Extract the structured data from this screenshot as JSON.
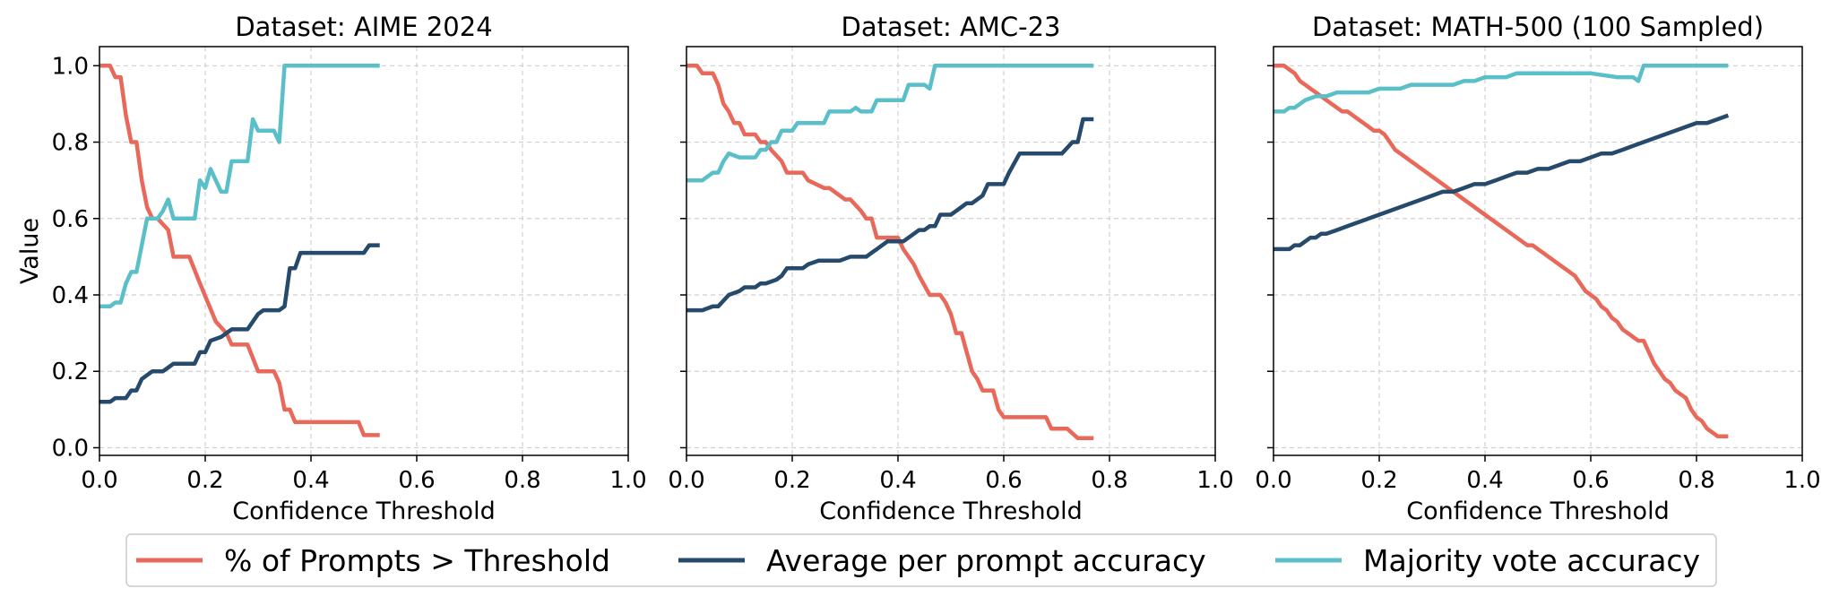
{
  "figure": {
    "legend": [
      {
        "name": "% of Prompts > Threshold",
        "color": "#e8685a"
      },
      {
        "name": "Average per prompt accuracy",
        "color": "#264a6b"
      },
      {
        "name": "Majority vote accuracy",
        "color": "#5bbfc9"
      }
    ],
    "legend_placement": "bottom-center"
  },
  "chart_data": [
    {
      "type": "line",
      "title": "Dataset: AIME 2024",
      "xlabel": "Confidence Threshold",
      "ylabel": "Value",
      "xlim": [
        0,
        1
      ],
      "ylim": [
        -0.02,
        1.05
      ],
      "xticks": [
        "0.0",
        "0.2",
        "0.4",
        "0.6",
        "0.8",
        "1.0"
      ],
      "yticks": [
        "0.0",
        "0.2",
        "0.4",
        "0.6",
        "0.8",
        "1.0"
      ],
      "grid": true,
      "series": [
        {
          "name": "% of Prompts > Threshold",
          "color": "#e8685a",
          "x": [
            0,
            0.02,
            0.03,
            0.04,
            0.05,
            0.06,
            0.065,
            0.07,
            0.08,
            0.09,
            0.1,
            0.11,
            0.13,
            0.14,
            0.17,
            0.19,
            0.22,
            0.24,
            0.25,
            0.28,
            0.3,
            0.33,
            0.34,
            0.35,
            0.36,
            0.37,
            0.49,
            0.5,
            0.53
          ],
          "y": [
            1.0,
            1.0,
            0.97,
            0.97,
            0.87,
            0.8,
            0.8,
            0.8,
            0.7,
            0.63,
            0.6,
            0.6,
            0.57,
            0.5,
            0.5,
            0.43,
            0.33,
            0.3,
            0.27,
            0.27,
            0.2,
            0.2,
            0.17,
            0.1,
            0.1,
            0.067,
            0.067,
            0.033,
            0.033
          ]
        },
        {
          "name": "Average per prompt accuracy",
          "color": "#264a6b",
          "x": [
            0,
            0.02,
            0.03,
            0.05,
            0.06,
            0.07,
            0.08,
            0.1,
            0.12,
            0.13,
            0.14,
            0.15,
            0.18,
            0.19,
            0.2,
            0.21,
            0.23,
            0.25,
            0.28,
            0.3,
            0.31,
            0.34,
            0.35,
            0.36,
            0.37,
            0.38,
            0.5,
            0.51,
            0.53
          ],
          "y": [
            0.12,
            0.12,
            0.13,
            0.13,
            0.15,
            0.15,
            0.18,
            0.2,
            0.2,
            0.21,
            0.22,
            0.22,
            0.22,
            0.25,
            0.25,
            0.28,
            0.29,
            0.31,
            0.31,
            0.35,
            0.36,
            0.36,
            0.37,
            0.47,
            0.47,
            0.51,
            0.51,
            0.53,
            0.53
          ]
        },
        {
          "name": "Majority vote accuracy",
          "color": "#5bbfc9",
          "x": [
            0,
            0.02,
            0.03,
            0.04,
            0.05,
            0.06,
            0.07,
            0.08,
            0.09,
            0.1,
            0.11,
            0.12,
            0.13,
            0.14,
            0.15,
            0.16,
            0.17,
            0.18,
            0.19,
            0.2,
            0.21,
            0.22,
            0.23,
            0.24,
            0.25,
            0.26,
            0.27,
            0.28,
            0.29,
            0.3,
            0.31,
            0.33,
            0.34,
            0.35,
            0.36,
            0.53
          ],
          "y": [
            0.37,
            0.37,
            0.38,
            0.38,
            0.43,
            0.46,
            0.46,
            0.53,
            0.6,
            0.6,
            0.6,
            0.62,
            0.65,
            0.6,
            0.6,
            0.6,
            0.6,
            0.6,
            0.7,
            0.68,
            0.73,
            0.7,
            0.67,
            0.67,
            0.75,
            0.75,
            0.75,
            0.75,
            0.86,
            0.83,
            0.83,
            0.83,
            0.8,
            1.0,
            1.0,
            1.0
          ]
        }
      ]
    },
    {
      "type": "line",
      "title": "Dataset: AMC-23",
      "xlabel": "Confidence Threshold",
      "ylabel": "",
      "xlim": [
        0,
        1
      ],
      "ylim": [
        -0.02,
        1.05
      ],
      "xticks": [
        "0.0",
        "0.2",
        "0.4",
        "0.6",
        "0.8",
        "1.0"
      ],
      "yticks": [],
      "grid": true,
      "series": [
        {
          "name": "% of Prompts > Threshold",
          "color": "#e8685a",
          "x": [
            0,
            0.02,
            0.03,
            0.05,
            0.06,
            0.07,
            0.08,
            0.09,
            0.1,
            0.11,
            0.13,
            0.14,
            0.15,
            0.16,
            0.18,
            0.19,
            0.22,
            0.23,
            0.26,
            0.27,
            0.3,
            0.31,
            0.33,
            0.34,
            0.35,
            0.36,
            0.38,
            0.39,
            0.4,
            0.41,
            0.42,
            0.43,
            0.44,
            0.46,
            0.47,
            0.48,
            0.49,
            0.5,
            0.51,
            0.52,
            0.53,
            0.54,
            0.55,
            0.56,
            0.58,
            0.59,
            0.6,
            0.61,
            0.64,
            0.65,
            0.68,
            0.69,
            0.7,
            0.71,
            0.72,
            0.74,
            0.76,
            0.77
          ],
          "y": [
            1.0,
            1.0,
            0.98,
            0.98,
            0.95,
            0.9,
            0.88,
            0.85,
            0.85,
            0.82,
            0.82,
            0.8,
            0.8,
            0.78,
            0.75,
            0.72,
            0.72,
            0.7,
            0.68,
            0.68,
            0.65,
            0.65,
            0.62,
            0.6,
            0.6,
            0.55,
            0.55,
            0.55,
            0.55,
            0.52,
            0.5,
            0.48,
            0.45,
            0.4,
            0.4,
            0.4,
            0.38,
            0.35,
            0.3,
            0.3,
            0.25,
            0.2,
            0.18,
            0.15,
            0.15,
            0.1,
            0.08,
            0.08,
            0.08,
            0.08,
            0.08,
            0.05,
            0.05,
            0.05,
            0.05,
            0.025,
            0.025,
            0.025
          ]
        },
        {
          "name": "Average per prompt accuracy",
          "color": "#264a6b",
          "x": [
            0,
            0.02,
            0.03,
            0.05,
            0.06,
            0.08,
            0.1,
            0.11,
            0.13,
            0.14,
            0.15,
            0.17,
            0.18,
            0.19,
            0.21,
            0.22,
            0.23,
            0.25,
            0.26,
            0.28,
            0.29,
            0.31,
            0.33,
            0.34,
            0.35,
            0.36,
            0.38,
            0.4,
            0.41,
            0.42,
            0.44,
            0.45,
            0.46,
            0.47,
            0.48,
            0.5,
            0.51,
            0.52,
            0.53,
            0.54,
            0.56,
            0.57,
            0.59,
            0.6,
            0.61,
            0.63,
            0.65,
            0.67,
            0.68,
            0.7,
            0.71,
            0.73,
            0.74,
            0.75,
            0.77
          ],
          "y": [
            0.36,
            0.36,
            0.36,
            0.37,
            0.37,
            0.4,
            0.41,
            0.42,
            0.42,
            0.43,
            0.43,
            0.44,
            0.45,
            0.47,
            0.47,
            0.47,
            0.48,
            0.49,
            0.49,
            0.49,
            0.49,
            0.5,
            0.5,
            0.5,
            0.51,
            0.52,
            0.54,
            0.54,
            0.54,
            0.55,
            0.57,
            0.57,
            0.58,
            0.58,
            0.61,
            0.61,
            0.62,
            0.63,
            0.64,
            0.64,
            0.66,
            0.69,
            0.69,
            0.69,
            0.72,
            0.77,
            0.77,
            0.77,
            0.77,
            0.77,
            0.77,
            0.8,
            0.8,
            0.86,
            0.86
          ]
        },
        {
          "name": "Majority vote accuracy",
          "color": "#5bbfc9",
          "x": [
            0,
            0.02,
            0.03,
            0.05,
            0.06,
            0.07,
            0.08,
            0.1,
            0.11,
            0.13,
            0.14,
            0.15,
            0.16,
            0.17,
            0.18,
            0.19,
            0.2,
            0.21,
            0.22,
            0.23,
            0.24,
            0.26,
            0.27,
            0.28,
            0.29,
            0.3,
            0.31,
            0.32,
            0.33,
            0.34,
            0.35,
            0.36,
            0.37,
            0.38,
            0.39,
            0.4,
            0.41,
            0.42,
            0.44,
            0.45,
            0.46,
            0.47,
            0.77
          ],
          "y": [
            0.7,
            0.7,
            0.7,
            0.72,
            0.72,
            0.75,
            0.77,
            0.76,
            0.76,
            0.76,
            0.78,
            0.78,
            0.8,
            0.8,
            0.83,
            0.83,
            0.83,
            0.85,
            0.85,
            0.85,
            0.85,
            0.85,
            0.88,
            0.88,
            0.88,
            0.88,
            0.88,
            0.89,
            0.88,
            0.88,
            0.88,
            0.91,
            0.91,
            0.91,
            0.91,
            0.91,
            0.91,
            0.95,
            0.95,
            0.95,
            0.94,
            1.0,
            1.0
          ]
        }
      ]
    },
    {
      "type": "line",
      "title": "Dataset: MATH-500 (100 Sampled)",
      "xlabel": "Confidence Threshold",
      "ylabel": "",
      "xlim": [
        0,
        1
      ],
      "ylim": [
        -0.02,
        1.05
      ],
      "xticks": [
        "0.0",
        "0.2",
        "0.4",
        "0.6",
        "0.8",
        "1.0"
      ],
      "yticks": [],
      "grid": true,
      "series": [
        {
          "name": "% of Prompts > Threshold",
          "color": "#e8685a",
          "x": [
            0,
            0.02,
            0.03,
            0.04,
            0.05,
            0.06,
            0.07,
            0.08,
            0.09,
            0.1,
            0.11,
            0.12,
            0.13,
            0.14,
            0.15,
            0.16,
            0.17,
            0.18,
            0.19,
            0.2,
            0.21,
            0.22,
            0.23,
            0.24,
            0.25,
            0.26,
            0.27,
            0.28,
            0.29,
            0.3,
            0.31,
            0.32,
            0.33,
            0.34,
            0.35,
            0.36,
            0.37,
            0.38,
            0.39,
            0.4,
            0.41,
            0.42,
            0.43,
            0.44,
            0.45,
            0.46,
            0.47,
            0.48,
            0.49,
            0.5,
            0.51,
            0.52,
            0.53,
            0.54,
            0.55,
            0.56,
            0.57,
            0.58,
            0.59,
            0.6,
            0.61,
            0.62,
            0.63,
            0.64,
            0.65,
            0.66,
            0.67,
            0.68,
            0.69,
            0.7,
            0.71,
            0.72,
            0.73,
            0.74,
            0.75,
            0.76,
            0.77,
            0.78,
            0.79,
            0.8,
            0.81,
            0.82,
            0.83,
            0.84,
            0.85,
            0.86
          ],
          "y": [
            1.0,
            1.0,
            0.99,
            0.98,
            0.96,
            0.95,
            0.94,
            0.93,
            0.92,
            0.91,
            0.9,
            0.89,
            0.88,
            0.88,
            0.87,
            0.86,
            0.85,
            0.84,
            0.83,
            0.83,
            0.82,
            0.8,
            0.78,
            0.77,
            0.76,
            0.75,
            0.74,
            0.73,
            0.72,
            0.71,
            0.7,
            0.69,
            0.68,
            0.67,
            0.66,
            0.65,
            0.64,
            0.63,
            0.62,
            0.61,
            0.6,
            0.59,
            0.58,
            0.57,
            0.56,
            0.55,
            0.54,
            0.53,
            0.53,
            0.52,
            0.51,
            0.5,
            0.49,
            0.48,
            0.47,
            0.46,
            0.45,
            0.43,
            0.41,
            0.4,
            0.39,
            0.37,
            0.36,
            0.34,
            0.33,
            0.31,
            0.3,
            0.29,
            0.28,
            0.28,
            0.25,
            0.22,
            0.2,
            0.18,
            0.17,
            0.15,
            0.14,
            0.13,
            0.1,
            0.08,
            0.07,
            0.05,
            0.04,
            0.03,
            0.03,
            0.03
          ]
        },
        {
          "name": "Average per prompt accuracy",
          "color": "#264a6b",
          "x": [
            0,
            0.02,
            0.03,
            0.04,
            0.05,
            0.06,
            0.07,
            0.08,
            0.09,
            0.1,
            0.12,
            0.14,
            0.16,
            0.18,
            0.2,
            0.22,
            0.24,
            0.26,
            0.28,
            0.3,
            0.32,
            0.34,
            0.36,
            0.38,
            0.4,
            0.42,
            0.44,
            0.46,
            0.48,
            0.5,
            0.52,
            0.54,
            0.56,
            0.58,
            0.6,
            0.62,
            0.64,
            0.66,
            0.68,
            0.7,
            0.72,
            0.74,
            0.76,
            0.78,
            0.8,
            0.82,
            0.84,
            0.86
          ],
          "y": [
            0.52,
            0.52,
            0.52,
            0.53,
            0.53,
            0.54,
            0.55,
            0.55,
            0.56,
            0.56,
            0.57,
            0.58,
            0.59,
            0.6,
            0.61,
            0.62,
            0.63,
            0.64,
            0.65,
            0.66,
            0.67,
            0.67,
            0.68,
            0.69,
            0.69,
            0.7,
            0.71,
            0.72,
            0.72,
            0.73,
            0.73,
            0.74,
            0.75,
            0.75,
            0.76,
            0.77,
            0.77,
            0.78,
            0.79,
            0.8,
            0.81,
            0.82,
            0.83,
            0.84,
            0.85,
            0.85,
            0.86,
            0.87
          ]
        },
        {
          "name": "Majority vote accuracy",
          "color": "#5bbfc9",
          "x": [
            0,
            0.02,
            0.03,
            0.04,
            0.05,
            0.06,
            0.08,
            0.1,
            0.12,
            0.14,
            0.16,
            0.18,
            0.2,
            0.22,
            0.24,
            0.26,
            0.28,
            0.3,
            0.32,
            0.34,
            0.36,
            0.38,
            0.4,
            0.42,
            0.44,
            0.46,
            0.5,
            0.55,
            0.6,
            0.65,
            0.68,
            0.69,
            0.7,
            0.72,
            0.86
          ],
          "y": [
            0.88,
            0.88,
            0.89,
            0.89,
            0.9,
            0.91,
            0.92,
            0.92,
            0.93,
            0.93,
            0.93,
            0.93,
            0.94,
            0.94,
            0.94,
            0.95,
            0.95,
            0.95,
            0.95,
            0.95,
            0.96,
            0.96,
            0.97,
            0.97,
            0.97,
            0.98,
            0.98,
            0.98,
            0.98,
            0.97,
            0.97,
            0.96,
            1.0,
            1.0,
            1.0
          ]
        }
      ]
    }
  ]
}
